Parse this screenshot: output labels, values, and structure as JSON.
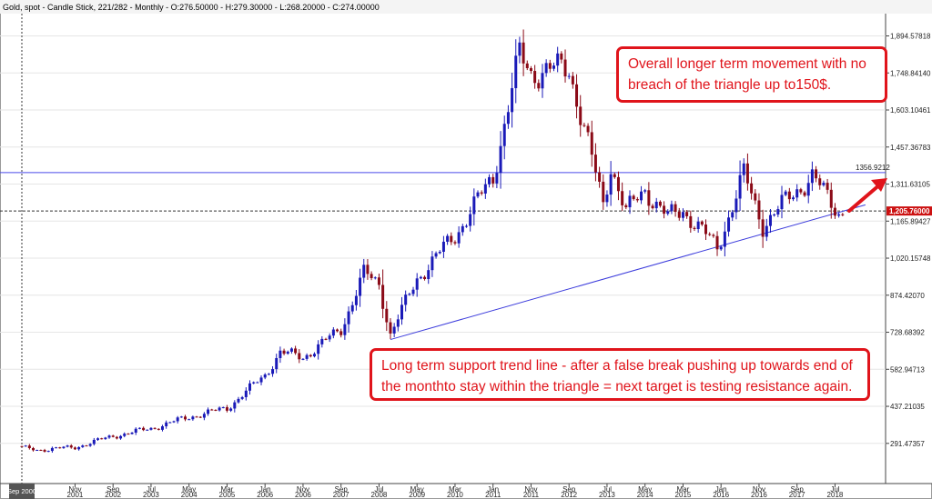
{
  "header": {
    "symbol": "Gold, spot",
    "chart_type": "Candle Stick",
    "bar_info": "221/282",
    "period": "Monthly",
    "ohlc": "O:276.50000 - H:279.30000 - L:268.20000 - C:274.00000"
  },
  "crosshair_label": "Sep 2000",
  "resistance_label": "1356.9212",
  "price_label": "1,205.76000",
  "callouts": {
    "top": "Overall longer term movement with no breach of the triangle up to150$.",
    "bottom": "Long term support trend line - after a false break pushing up towards end of the monthto stay within the triangle = next target is testing resistance again."
  },
  "colors": {
    "up_candle": "#1a1ab8",
    "down_candle": "#8b0a17",
    "trend_line": "#3c3cdc",
    "accent_red": "#e0141b",
    "price_box": "#cc1111"
  },
  "chart_data": {
    "type": "candlestick",
    "title": "Gold, spot - Candle Stick - Monthly",
    "yticks": [
      291.47357,
      437.21035,
      582.94713,
      728.68392,
      874.4207,
      1020.15748,
      1165.89427,
      1311.63105,
      1457.36783,
      1603.10461,
      1748.8414,
      1894.57818
    ],
    "ytick_labels": [
      "291.47357",
      "437.21035",
      "582.94713",
      "728.68392",
      "874.42070",
      "1,020.15748",
      "1,165.89427",
      "1,311.63105",
      "1,457.36783",
      "1,603.10461",
      "1,748.84140",
      "1,894.57818"
    ],
    "xtick_labels": [
      {
        "month": "Sep",
        "year": "2000"
      },
      {
        "month": "Nov",
        "year": "2001"
      },
      {
        "month": "Sep",
        "year": "2002"
      },
      {
        "month": "Jul",
        "year": "2003"
      },
      {
        "month": "May",
        "year": "2004"
      },
      {
        "month": "Mar",
        "year": "2005"
      },
      {
        "month": "Jan",
        "year": "2006"
      },
      {
        "month": "Nov",
        "year": "2006"
      },
      {
        "month": "Sep",
        "year": "2007"
      },
      {
        "month": "Jul",
        "year": "2008"
      },
      {
        "month": "May",
        "year": "2009"
      },
      {
        "month": "Mar",
        "year": "2010"
      },
      {
        "month": "Jan",
        "year": "2011"
      },
      {
        "month": "Nov",
        "year": "2011"
      },
      {
        "month": "Sep",
        "year": "2012"
      },
      {
        "month": "Jul",
        "year": "2013"
      },
      {
        "month": "May",
        "year": "2014"
      },
      {
        "month": "Mar",
        "year": "2015"
      },
      {
        "month": "Jan",
        "year": "2016"
      },
      {
        "month": "Nov",
        "year": "2016"
      },
      {
        "month": "Sep",
        "year": "2017"
      },
      {
        "month": "Jul",
        "year": "2018"
      }
    ],
    "resistance_level": 1356.9212,
    "current_price": 1205.76,
    "support_line": {
      "start": {
        "date": "Oct 2008",
        "value": 700
      },
      "end": {
        "date": "Mar 2019",
        "value": 1230
      }
    },
    "price_path": [
      [
        "Sep 2000",
        274
      ],
      [
        "Jan 2001",
        266
      ],
      [
        "Nov 2001",
        276
      ],
      [
        "Sep 2002",
        320
      ],
      [
        "Jul 2003",
        350
      ],
      [
        "May 2004",
        395
      ],
      [
        "Mar 2005",
        430
      ],
      [
        "Jan 2006",
        560
      ],
      [
        "May 2006",
        650
      ],
      [
        "Nov 2006",
        630
      ],
      [
        "Sep 2007",
        740
      ],
      [
        "Mar 2008",
        960
      ],
      [
        "Jul 2008",
        920
      ],
      [
        "Oct 2008",
        720
      ],
      [
        "May 2009",
        940
      ],
      [
        "Mar 2010",
        1110
      ],
      [
        "Jan 2011",
        1340
      ],
      [
        "Aug 2011",
        1820
      ],
      [
        "Nov 2011",
        1750
      ],
      [
        "Sep 2012",
        1770
      ],
      [
        "Jun 2013",
        1230
      ],
      [
        "Aug 2013",
        1390
      ],
      [
        "Dec 2013",
        1200
      ],
      [
        "May 2014",
        1290
      ],
      [
        "Nov 2014",
        1180
      ],
      [
        "Mar 2015",
        1210
      ],
      [
        "Dec 2015",
        1060
      ],
      [
        "Jul 2016",
        1350
      ],
      [
        "Dec 2016",
        1150
      ],
      [
        "Sep 2017",
        1290
      ],
      [
        "Jan 2018",
        1340
      ],
      [
        "Aug 2018",
        1200
      ],
      [
        "Sep 2018",
        1205.76
      ]
    ]
  }
}
